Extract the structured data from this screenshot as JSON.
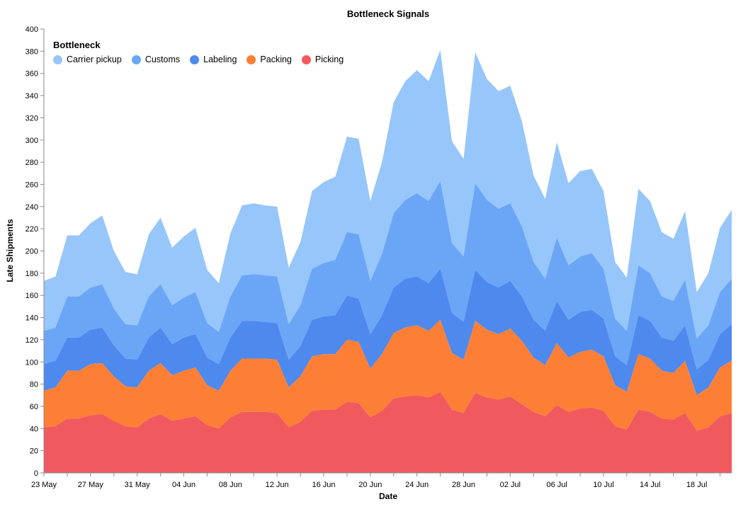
{
  "chart_data": {
    "type": "area",
    "stacked": true,
    "title": "Bottleneck Signals",
    "xlabel": "Date",
    "ylabel": "Late Shipments",
    "ylim": [
      0,
      400
    ],
    "y_ticks": [
      0,
      20,
      40,
      60,
      80,
      100,
      120,
      140,
      160,
      180,
      200,
      220,
      240,
      260,
      280,
      300,
      320,
      340,
      360,
      380,
      400
    ],
    "x_tick_labels": [
      "23 May",
      "27 May",
      "31 May",
      "04 Jun",
      "08 Jun",
      "12 Jun",
      "16 Jun",
      "20 Jun",
      "24 Jun",
      "28 Jun",
      "02 Jul",
      "06 Jul",
      "10 Jul",
      "14 Jul",
      "18 Jul"
    ],
    "legend_title": "Bottleneck",
    "legend_position": "top-left",
    "grid": false,
    "x": [
      "2024-05-23",
      "2024-05-24",
      "2024-05-25",
      "2024-05-26",
      "2024-05-27",
      "2024-05-28",
      "2024-05-29",
      "2024-05-30",
      "2024-05-31",
      "2024-06-01",
      "2024-06-02",
      "2024-06-03",
      "2024-06-04",
      "2024-06-05",
      "2024-06-06",
      "2024-06-07",
      "2024-06-08",
      "2024-06-09",
      "2024-06-10",
      "2024-06-11",
      "2024-06-12",
      "2024-06-13",
      "2024-06-14",
      "2024-06-15",
      "2024-06-16",
      "2024-06-17",
      "2024-06-18",
      "2024-06-19",
      "2024-06-20",
      "2024-06-21",
      "2024-06-22",
      "2024-06-23",
      "2024-06-24",
      "2024-06-25",
      "2024-06-26",
      "2024-06-27",
      "2024-06-28",
      "2024-06-29",
      "2024-06-30",
      "2024-07-01",
      "2024-07-02",
      "2024-07-03",
      "2024-07-04",
      "2024-07-05",
      "2024-07-06",
      "2024-07-07",
      "2024-07-08",
      "2024-07-09",
      "2024-07-10",
      "2024-07-11",
      "2024-07-12",
      "2024-07-13",
      "2024-07-14",
      "2024-07-15",
      "2024-07-16",
      "2024-07-17",
      "2024-07-18",
      "2024-07-19",
      "2024-07-20",
      "2024-07-21"
    ],
    "series": [
      {
        "name": "Picking",
        "color": "#f05a5e",
        "values": [
          41,
          42,
          49,
          49,
          52,
          53,
          47,
          42,
          41,
          49,
          53,
          47,
          49,
          51,
          43,
          40,
          50,
          55,
          55,
          55,
          54,
          41,
          46,
          56,
          57,
          57,
          64,
          63,
          50,
          56,
          67,
          69,
          70,
          68,
          73,
          57,
          54,
          72,
          68,
          66,
          69,
          62,
          55,
          51,
          61,
          55,
          58,
          59,
          56,
          42,
          39,
          57,
          55,
          49,
          48,
          54,
          38,
          41,
          51,
          54
        ]
      },
      {
        "name": "Packing",
        "color": "#fd7f35",
        "values": [
          33,
          35,
          43,
          43,
          46,
          46,
          40,
          36,
          36,
          43,
          46,
          41,
          43,
          44,
          36,
          34,
          42,
          48,
          48,
          48,
          48,
          36,
          41,
          49,
          50,
          50,
          56,
          55,
          44,
          51,
          59,
          62,
          63,
          60,
          65,
          51,
          48,
          65,
          61,
          59,
          61,
          57,
          49,
          46,
          56,
          49,
          51,
          52,
          49,
          37,
          34,
          50,
          48,
          43,
          42,
          47,
          32,
          36,
          44,
          47
        ]
      },
      {
        "name": "Labeling",
        "color": "#4e89ee",
        "values": [
          24,
          24,
          30,
          30,
          31,
          32,
          28,
          25,
          25,
          30,
          32,
          28,
          30,
          30,
          25,
          24,
          30,
          34,
          34,
          33,
          33,
          25,
          27,
          33,
          34,
          35,
          40,
          39,
          31,
          35,
          41,
          44,
          44,
          43,
          46,
          36,
          34,
          46,
          43,
          42,
          43,
          40,
          34,
          31,
          38,
          34,
          36,
          36,
          34,
          26,
          24,
          35,
          34,
          30,
          29,
          32,
          23,
          25,
          30,
          33
        ]
      },
      {
        "name": "Customs",
        "color": "#6ba6f6",
        "values": [
          30,
          30,
          37,
          37,
          38,
          39,
          33,
          31,
          31,
          37,
          39,
          35,
          36,
          38,
          31,
          29,
          37,
          41,
          42,
          42,
          42,
          32,
          37,
          46,
          48,
          50,
          57,
          58,
          48,
          55,
          67,
          71,
          75,
          74,
          79,
          63,
          59,
          78,
          74,
          71,
          70,
          63,
          52,
          47,
          57,
          49,
          50,
          51,
          45,
          34,
          31,
          45,
          43,
          37,
          36,
          41,
          28,
          31,
          38,
          41
        ]
      },
      {
        "name": "Carrier pickup",
        "color": "#97c6fa",
        "values": [
          45,
          46,
          55,
          55,
          58,
          62,
          52,
          47,
          46,
          56,
          60,
          52,
          55,
          58,
          48,
          44,
          57,
          63,
          64,
          63,
          63,
          51,
          57,
          70,
          73,
          75,
          86,
          86,
          72,
          83,
          100,
          107,
          111,
          108,
          118,
          92,
          88,
          118,
          109,
          106,
          106,
          95,
          78,
          72,
          86,
          74,
          77,
          76,
          70,
          51,
          48,
          69,
          65,
          58,
          56,
          62,
          42,
          47,
          58,
          62
        ]
      }
    ]
  }
}
